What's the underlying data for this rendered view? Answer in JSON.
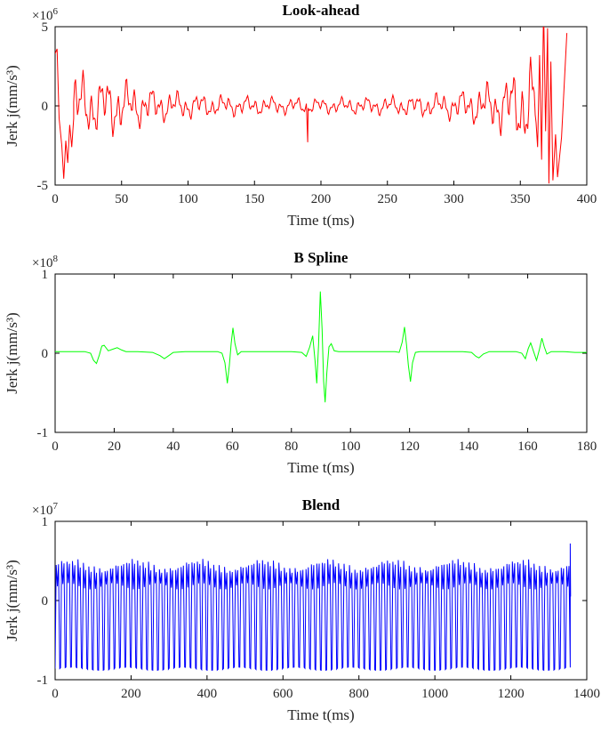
{
  "figure": {
    "background": "#ffffff"
  },
  "chart_data": [
    {
      "type": "line",
      "title": "Look-ahead",
      "xlabel": "Time t(ms)",
      "ylabel": "Jerk j(mm/s³)",
      "offset_label": {
        "mantissa": "×10",
        "exponent": "6"
      },
      "color": "#ff0000",
      "xlim": [
        0,
        400
      ],
      "ylim": [
        -5,
        5
      ],
      "xticks": [
        0,
        50,
        100,
        150,
        200,
        250,
        300,
        350,
        400
      ],
      "yticks": [
        -5,
        0,
        5
      ],
      "legend": null,
      "grid": false,
      "series": {
        "kind": "noise",
        "head_points": [
          [
            0,
            3.3
          ],
          [
            1.5,
            3.6
          ],
          [
            3,
            -0.8
          ],
          [
            5,
            -2.5
          ],
          [
            6.5,
            -4.6
          ],
          [
            8,
            -2.2
          ],
          [
            9.5,
            -3.6
          ],
          [
            11,
            -1.2
          ],
          [
            12.5,
            -2.6
          ],
          [
            14,
            -0.8
          ]
        ],
        "envelope": [
          [
            14,
            2.1
          ],
          [
            22,
            1.9
          ],
          [
            32,
            1.7
          ],
          [
            45,
            1.8
          ],
          [
            55,
            1.4
          ],
          [
            70,
            1.1
          ],
          [
            90,
            0.85
          ],
          [
            110,
            0.7
          ],
          [
            130,
            0.6
          ],
          [
            150,
            0.55
          ],
          [
            170,
            0.5
          ],
          [
            200,
            0.45
          ],
          [
            230,
            0.5
          ],
          [
            250,
            0.55
          ],
          [
            270,
            0.6
          ],
          [
            290,
            0.75
          ],
          [
            305,
            0.9
          ],
          [
            320,
            1.2
          ],
          [
            335,
            1.6
          ],
          [
            345,
            2.0
          ],
          [
            355,
            2.6
          ],
          [
            362,
            3.2
          ]
        ],
        "osc_components": [
          [
            0.55,
            0.97,
            0
          ],
          [
            0.45,
            0.35,
            1.2
          ],
          [
            0.3,
            2.13,
            0.5
          ]
        ],
        "step": 0.7,
        "range": [
          14,
          362
        ],
        "events": [
          [
            190,
            -2.3
          ]
        ],
        "tail_points": [
          [
            363,
            -2.6
          ],
          [
            364.5,
            3.2
          ],
          [
            366,
            -3.4
          ],
          [
            367.5,
            6.3
          ],
          [
            369,
            -1.6
          ],
          [
            370.5,
            4.9
          ],
          [
            371.5,
            -4.9
          ],
          [
            373,
            2.8
          ],
          [
            374.5,
            -4.7
          ],
          [
            376.5,
            -1.8
          ],
          [
            378,
            -4.5
          ],
          [
            381,
            -2.0
          ],
          [
            385,
            4.6
          ]
        ]
      }
    },
    {
      "type": "line",
      "title": "B Spline",
      "xlabel": "Time t(ms)",
      "ylabel": "Jerk j(mm/s³)",
      "offset_label": {
        "mantissa": "×10",
        "exponent": "8"
      },
      "color": "#00ff00",
      "xlim": [
        0,
        180
      ],
      "ylim": [
        -1,
        1
      ],
      "xticks": [
        0,
        20,
        40,
        60,
        80,
        100,
        120,
        140,
        160,
        180
      ],
      "yticks": [
        -1,
        0,
        1
      ],
      "legend": null,
      "grid": false,
      "series": {
        "kind": "points",
        "points": [
          [
            0,
            0.02
          ],
          [
            6,
            0.02
          ],
          [
            10,
            0.02
          ],
          [
            12,
            0.0
          ],
          [
            13,
            -0.09
          ],
          [
            14,
            -0.13
          ],
          [
            15,
            -0.02
          ],
          [
            15.8,
            0.09
          ],
          [
            16.6,
            0.1
          ],
          [
            18,
            0.03
          ],
          [
            19.5,
            0.05
          ],
          [
            21,
            0.07
          ],
          [
            22.5,
            0.04
          ],
          [
            24,
            0.02
          ],
          [
            28,
            0.02
          ],
          [
            33,
            0.01
          ],
          [
            35.5,
            -0.03
          ],
          [
            37,
            -0.07
          ],
          [
            38.5,
            -0.03
          ],
          [
            40,
            0.01
          ],
          [
            44,
            0.02
          ],
          [
            50,
            0.02
          ],
          [
            55,
            0.02
          ],
          [
            56.5,
            0.0
          ],
          [
            57.5,
            -0.12
          ],
          [
            58.3,
            -0.38
          ],
          [
            59,
            -0.15
          ],
          [
            59.6,
            0.12
          ],
          [
            60.2,
            0.32
          ],
          [
            60.9,
            0.12
          ],
          [
            61.8,
            -0.02
          ],
          [
            63,
            0.02
          ],
          [
            68,
            0.02
          ],
          [
            74,
            0.02
          ],
          [
            80,
            0.02
          ],
          [
            83.5,
            0.01
          ],
          [
            85,
            -0.04
          ],
          [
            86.2,
            0.08
          ],
          [
            87.2,
            0.22
          ],
          [
            88,
            -0.1
          ],
          [
            88.6,
            -0.38
          ],
          [
            89.2,
            0.1
          ],
          [
            89.8,
            0.78
          ],
          [
            90.4,
            0.3
          ],
          [
            90.9,
            -0.35
          ],
          [
            91.4,
            -0.62
          ],
          [
            92,
            -0.25
          ],
          [
            92.7,
            0.08
          ],
          [
            93.5,
            0.12
          ],
          [
            94.5,
            0.03
          ],
          [
            96,
            0.02
          ],
          [
            102,
            0.02
          ],
          [
            110,
            0.02
          ],
          [
            115,
            0.02
          ],
          [
            116.5,
            0.01
          ],
          [
            117.5,
            0.14
          ],
          [
            118.3,
            0.33
          ],
          [
            119,
            0.1
          ],
          [
            119.6,
            -0.15
          ],
          [
            120.3,
            -0.36
          ],
          [
            121,
            -0.12
          ],
          [
            122,
            0.01
          ],
          [
            123.5,
            0.02
          ],
          [
            130,
            0.02
          ],
          [
            138,
            0.02
          ],
          [
            141,
            0.01
          ],
          [
            142.5,
            -0.04
          ],
          [
            143.5,
            -0.06
          ],
          [
            145,
            -0.01
          ],
          [
            147,
            0.02
          ],
          [
            152,
            0.02
          ],
          [
            156,
            0.02
          ],
          [
            158,
            0.0
          ],
          [
            159.2,
            -0.07
          ],
          [
            160.2,
            0.06
          ],
          [
            161,
            0.13
          ],
          [
            162,
            0.02
          ],
          [
            163,
            -0.09
          ],
          [
            164,
            0.05
          ],
          [
            164.8,
            0.19
          ],
          [
            165.6,
            0.08
          ],
          [
            166.5,
            -0.01
          ],
          [
            168,
            0.02
          ],
          [
            172,
            0.02
          ],
          [
            176,
            0.01
          ],
          [
            180,
            0.01
          ]
        ]
      }
    },
    {
      "type": "line",
      "title": "Blend",
      "xlabel": "Time t(ms)",
      "ylabel": "Jerk j(mm/s³)",
      "offset_label": {
        "mantissa": "×10",
        "exponent": "7"
      },
      "color": "#0000ff",
      "xlim": [
        0,
        1400
      ],
      "ylim": [
        -1,
        1
      ],
      "xticks": [
        0,
        200,
        400,
        600,
        800,
        1000,
        1200,
        1400
      ],
      "yticks": [
        -1,
        0,
        1
      ],
      "legend": null,
      "grid": false,
      "series": {
        "kind": "comb",
        "start": 0,
        "count": 95,
        "period": 14.3,
        "bottom_base": -0.86,
        "bottom_wobble": 0.02,
        "top_base": 0.45,
        "top_wobble": 0.06,
        "mid_base": 0.18,
        "mid_wobble": 0.04,
        "end_points": [
          [
            1356.5,
            0.72
          ],
          [
            1357.5,
            0.05
          ]
        ]
      }
    }
  ]
}
